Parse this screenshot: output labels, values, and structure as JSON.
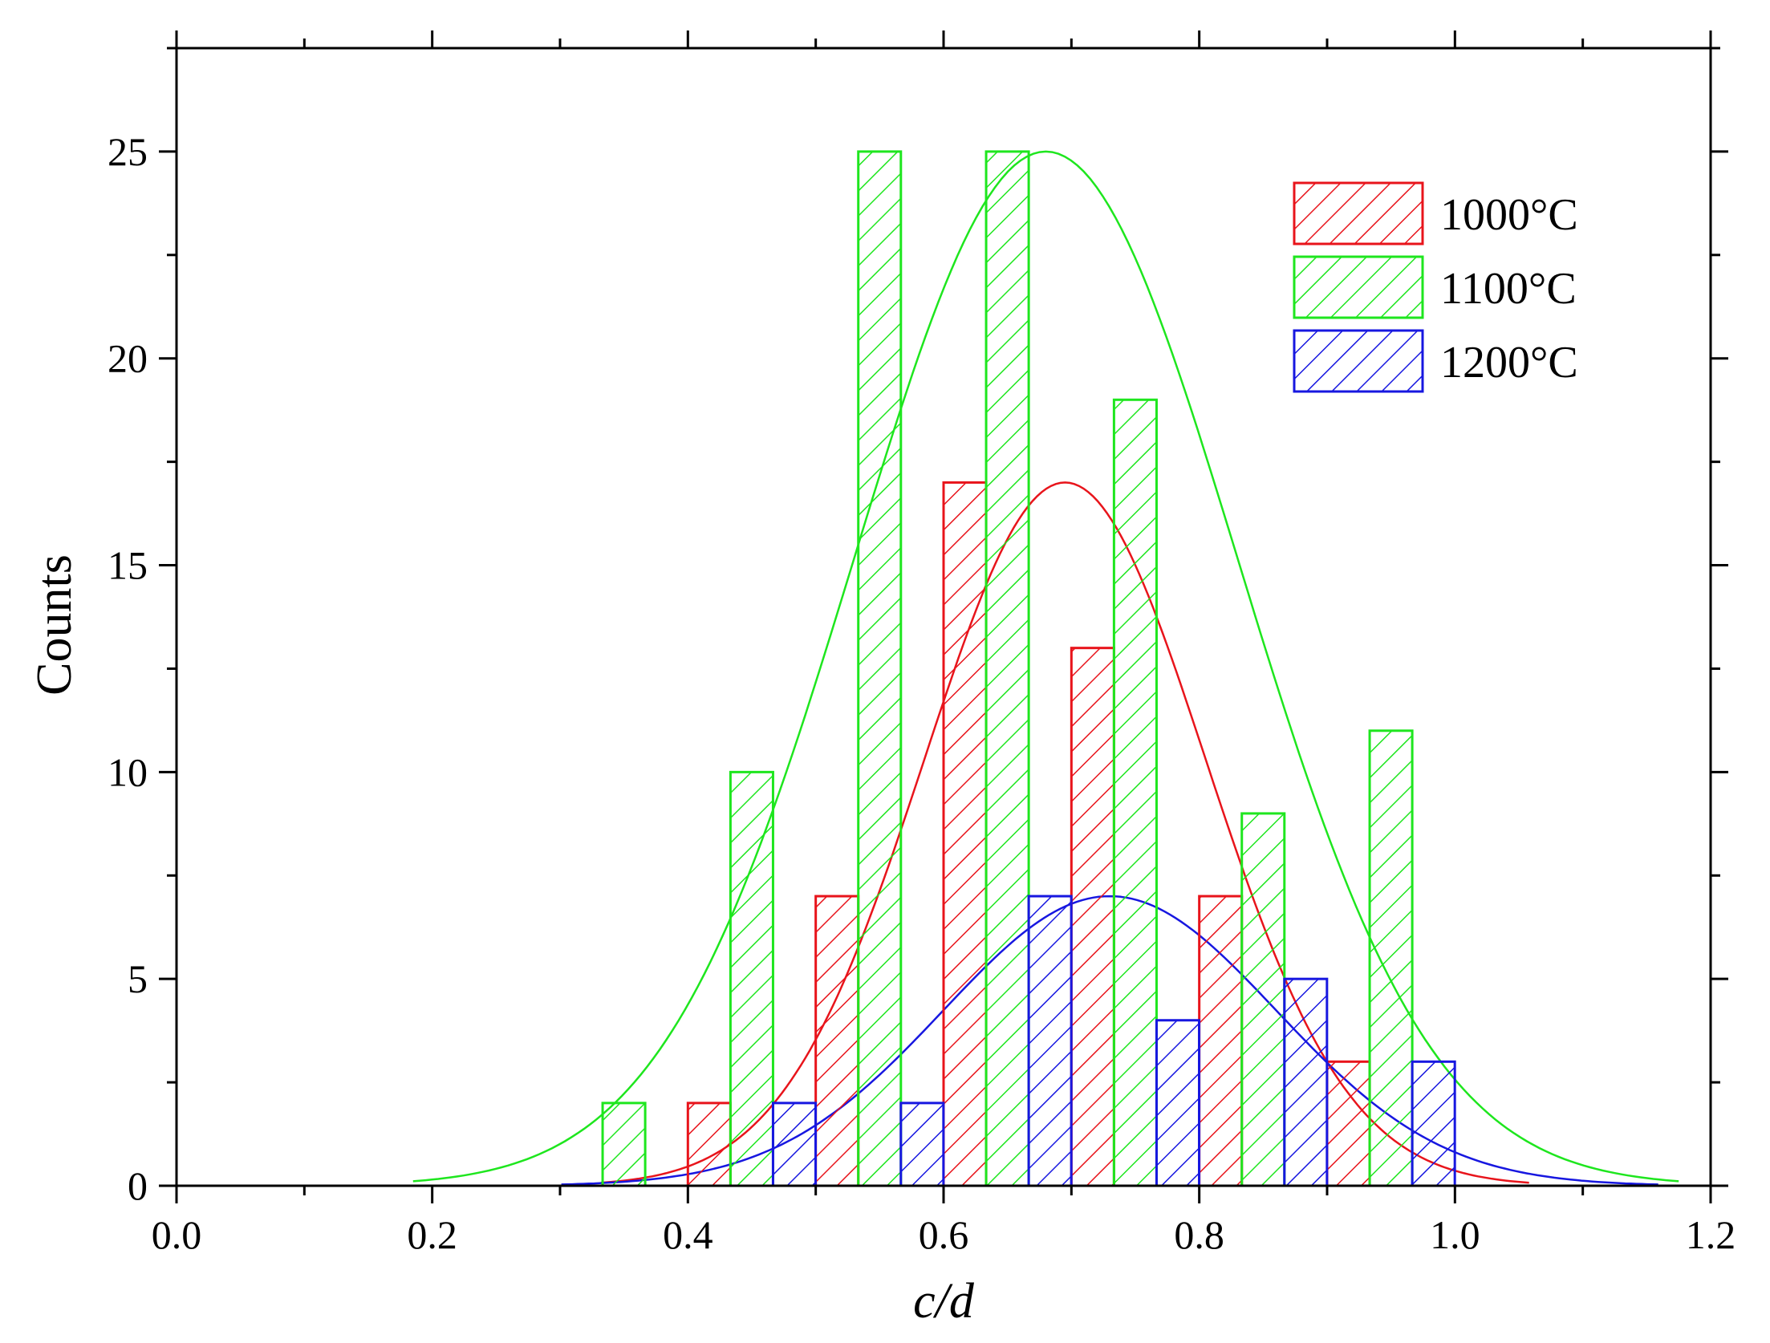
{
  "chart_data": {
    "type": "bar",
    "xlabel": "c/d",
    "ylabel": "Counts",
    "xlim": [
      0.0,
      1.2
    ],
    "ylim": [
      0,
      27.5
    ],
    "x_ticks": [
      "0.0",
      "0.2",
      "0.4",
      "0.6",
      "0.8",
      "1.0",
      "1.2"
    ],
    "y_ticks": [
      "0",
      "5",
      "10",
      "15",
      "20",
      "25"
    ],
    "bin_width": 0.1,
    "bar_width": 0.0333,
    "grid": false,
    "legend_position": "top-right",
    "hatch": "diagonal",
    "series": [
      {
        "name": "1000°C",
        "color": "#e8141b",
        "bins": [
          0.4,
          0.5,
          0.6,
          0.7,
          0.8,
          0.9
        ],
        "values": [
          2,
          7,
          17,
          13,
          7,
          3
        ],
        "fit": {
          "type": "gaussian",
          "amplitude": 17,
          "mean": 0.695,
          "sigma": 0.11
        }
      },
      {
        "name": "1100°C",
        "color": "#1ee61e",
        "bins": [
          0.3,
          0.4,
          0.5,
          0.6,
          0.7,
          0.8,
          0.9
        ],
        "values": [
          2,
          10,
          25,
          25,
          19,
          9,
          11
        ],
        "fit": {
          "type": "gaussian",
          "amplitude": 25,
          "mean": 0.68,
          "sigma": 0.15
        }
      },
      {
        "name": "1200°C",
        "color": "#1717e0",
        "bins": [
          0.4,
          0.5,
          0.6,
          0.7,
          0.8,
          0.9
        ],
        "values": [
          2,
          2,
          7,
          4,
          5,
          3
        ],
        "fit": {
          "type": "gaussian",
          "amplitude": 7,
          "mean": 0.73,
          "sigma": 0.13
        }
      }
    ]
  }
}
